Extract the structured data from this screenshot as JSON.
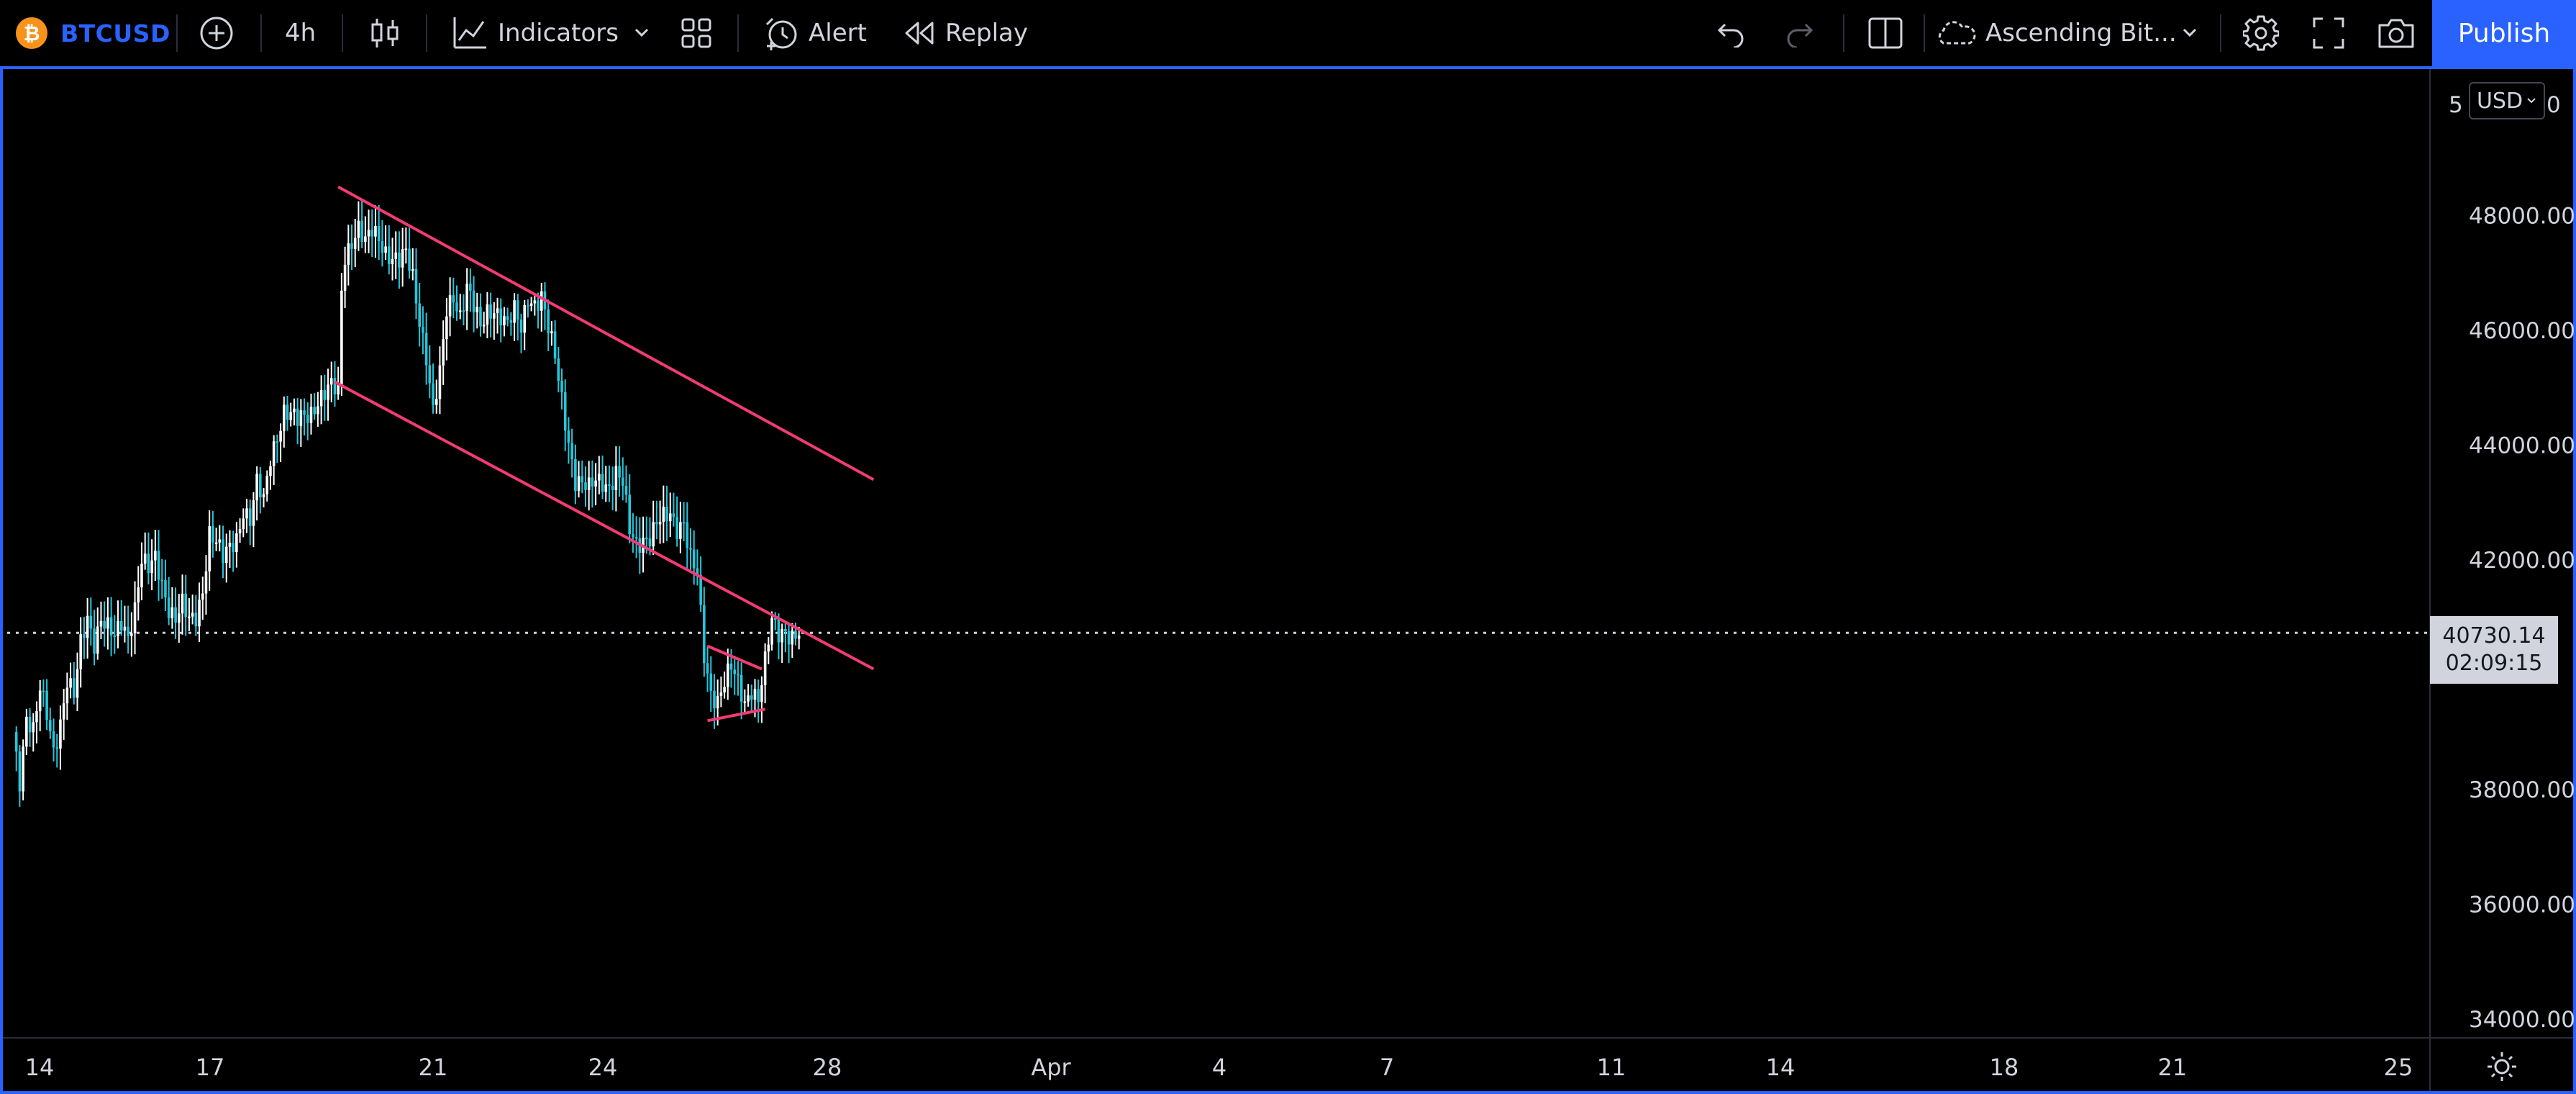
{
  "toolbar": {
    "symbol_icon": "bitcoin-icon",
    "symbol": "BTCUSD",
    "interval": "4h",
    "indicators_label": "Indicators",
    "alert_label": "Alert",
    "replay_label": "Replay",
    "layout_name": "Ascending Bit...",
    "publish_label": "Publish"
  },
  "price_axis": {
    "currency": "USD",
    "top_partial_label_left": "5",
    "top_partial_label_right": "0",
    "current_price": "40730.14",
    "countdown": "02:09:15"
  },
  "colors": {
    "background": "#000000",
    "accent": "#2962ff",
    "candle_up": "#ffffff",
    "candle_down": "#26c6da",
    "trendline": "#f23b75",
    "symbol_badge": "#f7931a"
  },
  "chart_data": {
    "type": "candlestick",
    "symbol": "BTCUSD",
    "interval": "4h",
    "y_ticks": [
      "48000.00",
      "46000.00",
      "44000.00",
      "42000.00",
      "38000.00",
      "36000.00",
      "34000.00"
    ],
    "x_ticks": [
      "14",
      "17",
      "21",
      "24",
      "28",
      "Apr",
      "4",
      "7",
      "11",
      "14",
      "18",
      "21",
      "25"
    ],
    "ylim": [
      33600,
      50800
    ],
    "current_price": 40730.14,
    "anchors": [
      [
        0,
        39000
      ],
      [
        2,
        38200
      ],
      [
        4,
        39300
      ],
      [
        6,
        39000
      ],
      [
        8,
        39700
      ],
      [
        10,
        39300
      ],
      [
        12,
        38700
      ],
      [
        14,
        39200
      ],
      [
        16,
        39900
      ],
      [
        18,
        39600
      ],
      [
        20,
        40500
      ],
      [
        22,
        41000
      ],
      [
        24,
        40600
      ],
      [
        26,
        41000
      ],
      [
        28,
        40800
      ],
      [
        30,
        40600
      ],
      [
        32,
        40900
      ],
      [
        34,
        40700
      ],
      [
        36,
        41200
      ],
      [
        38,
        42000
      ],
      [
        40,
        41800
      ],
      [
        42,
        42000
      ],
      [
        44,
        41600
      ],
      [
        46,
        41200
      ],
      [
        48,
        41000
      ],
      [
        50,
        41200
      ],
      [
        52,
        40900
      ],
      [
        54,
        41000
      ],
      [
        56,
        41500
      ],
      [
        58,
        42500
      ],
      [
        60,
        42300
      ],
      [
        62,
        42000
      ],
      [
        64,
        42200
      ],
      [
        66,
        42400
      ],
      [
        68,
        42900
      ],
      [
        70,
        42700
      ],
      [
        72,
        43300
      ],
      [
        74,
        43000
      ],
      [
        76,
        43800
      ],
      [
        78,
        44200
      ],
      [
        80,
        44600
      ],
      [
        82,
        44500
      ],
      [
        84,
        44400
      ],
      [
        86,
        44500
      ],
      [
        88,
        44600
      ],
      [
        90,
        44800
      ],
      [
        92,
        44900
      ],
      [
        94,
        45000
      ],
      [
        96,
        44900
      ],
      [
        97,
        46700
      ],
      [
        98,
        47300
      ],
      [
        100,
        47600
      ],
      [
        102,
        47800
      ],
      [
        104,
        47500
      ],
      [
        106,
        47700
      ],
      [
        108,
        47600
      ],
      [
        110,
        47400
      ],
      [
        112,
        47300
      ],
      [
        114,
        47200
      ],
      [
        116,
        47300
      ],
      [
        118,
        46900
      ],
      [
        120,
        46200
      ],
      [
        122,
        45600
      ],
      [
        124,
        44600
      ],
      [
        126,
        45200
      ],
      [
        128,
        46300
      ],
      [
        130,
        46600
      ],
      [
        132,
        46300
      ],
      [
        134,
        46800
      ],
      [
        136,
        46400
      ],
      [
        138,
        46000
      ],
      [
        140,
        46300
      ],
      [
        142,
        46400
      ],
      [
        144,
        46300
      ],
      [
        146,
        46100
      ],
      [
        148,
        46300
      ],
      [
        150,
        46000
      ],
      [
        152,
        46600
      ],
      [
        154,
        46500
      ],
      [
        156,
        46600
      ],
      [
        158,
        46000
      ],
      [
        160,
        45500
      ],
      [
        162,
        44800
      ],
      [
        164,
        44100
      ],
      [
        166,
        43400
      ],
      [
        168,
        43300
      ],
      [
        170,
        43200
      ],
      [
        172,
        43400
      ],
      [
        174,
        43400
      ],
      [
        176,
        43300
      ],
      [
        178,
        43500
      ],
      [
        180,
        43300
      ],
      [
        182,
        42500
      ],
      [
        184,
        42300
      ],
      [
        186,
        42400
      ],
      [
        188,
        42400
      ],
      [
        190,
        42600
      ],
      [
        192,
        42700
      ],
      [
        194,
        42800
      ],
      [
        196,
        42600
      ],
      [
        198,
        42700
      ],
      [
        200,
        42000
      ],
      [
        202,
        41700
      ],
      [
        204,
        40300
      ],
      [
        206,
        39700
      ],
      [
        208,
        39600
      ],
      [
        210,
        39900
      ],
      [
        212,
        40100
      ],
      [
        214,
        39800
      ],
      [
        216,
        39500
      ],
      [
        218,
        39800
      ],
      [
        220,
        39600
      ],
      [
        222,
        40200
      ],
      [
        224,
        40900
      ],
      [
        226,
        40700
      ],
      [
        228,
        40800
      ],
      [
        230,
        40700
      ],
      [
        232,
        40730
      ]
    ],
    "trendlines": [
      {
        "from": [
          96,
          48500
        ],
        "to": [
          254,
          43400
        ]
      },
      {
        "from": [
          95,
          45100
        ],
        "to": [
          254,
          40100
        ]
      },
      {
        "from": [
          205,
          40500
        ],
        "to": [
          221,
          40100
        ]
      },
      {
        "from": [
          205,
          39200
        ],
        "to": [
          222,
          39400
        ]
      }
    ]
  }
}
